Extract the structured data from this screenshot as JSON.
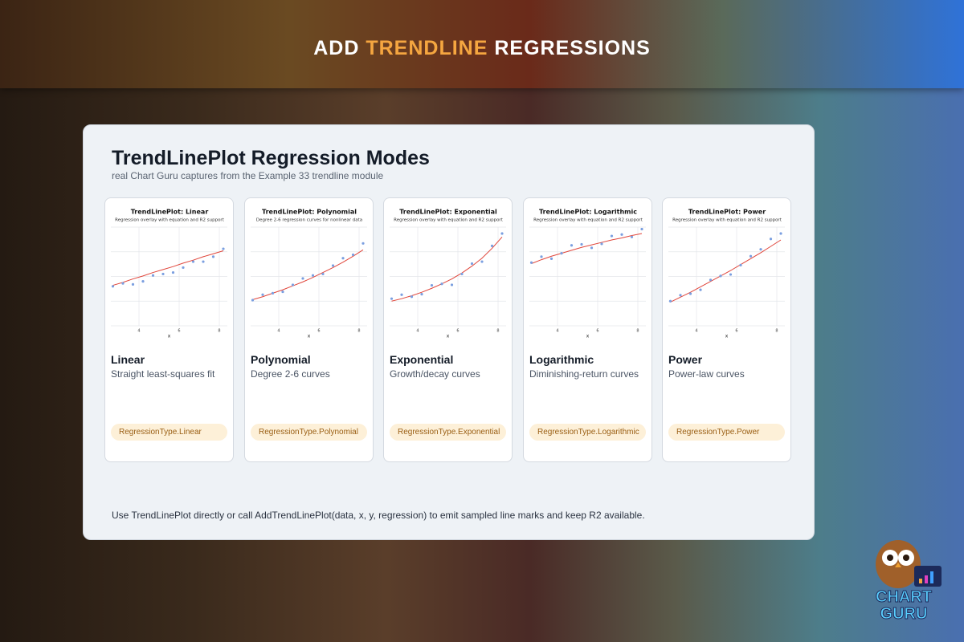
{
  "header": {
    "title": [
      "ADD",
      "TRENDLINE",
      "REGRESSIONS"
    ]
  },
  "panel": {
    "title": "TrendLinePlot Regression Modes",
    "subtitle": "real Chart Guru captures from the Example 33 trendline module",
    "footer": "Use TrendLinePlot directly or call AddTrendLinePlot(data, x, y, regression) to emit sampled line marks and keep R2 available."
  },
  "cards": [
    {
      "name": "Linear",
      "description": "Straight least-squares fit",
      "tag": "RegressionType.Linear",
      "thumbnail": {
        "type": "scatter",
        "title": "TrendLinePlot: Linear",
        "subtitle": "Regression overlay with equation and R2 support",
        "x_label": "x",
        "xlim": [
          2.6,
          8.4
        ],
        "ylim": [
          0,
          20
        ],
        "xticks": [
          4,
          6,
          8
        ],
        "point_color": "#7b9fe0",
        "fit_color": "#e0453a",
        "x": [
          2.7,
          3.2,
          3.7,
          4.2,
          4.7,
          5.2,
          5.7,
          6.2,
          6.7,
          7.2,
          7.7,
          8.2
        ],
        "points": [
          8.0,
          8.6,
          8.4,
          9.0,
          10.2,
          10.5,
          10.8,
          11.8,
          13.0,
          13.0,
          14.0,
          15.6
        ],
        "fit": [
          8.2,
          8.8,
          9.5,
          10.1,
          10.8,
          11.4,
          12.0,
          12.7,
          13.3,
          14.0,
          14.6,
          15.2
        ]
      }
    },
    {
      "name": "Polynomial",
      "description": "Degree 2-6 curves",
      "tag": "RegressionType.Polynomial",
      "thumbnail": {
        "type": "scatter",
        "title": "TrendLinePlot: Polynomial",
        "subtitle": "Degree 2-6 regression curves for nonlinear data",
        "x_label": "x",
        "xlim": [
          2.6,
          8.4
        ],
        "ylim": [
          0,
          20
        ],
        "xticks": [
          4,
          6,
          8
        ],
        "point_color": "#7b9fe0",
        "fit_color": "#e0453a",
        "x": [
          2.7,
          3.2,
          3.7,
          4.2,
          4.7,
          5.2,
          5.7,
          6.2,
          6.7,
          7.2,
          7.7,
          8.2
        ],
        "points": [
          5.2,
          6.3,
          6.6,
          6.9,
          8.3,
          9.6,
          10.2,
          10.5,
          12.2,
          13.7,
          14.4,
          16.7
        ],
        "fit": [
          5.3,
          5.9,
          6.6,
          7.3,
          8.1,
          8.9,
          9.8,
          10.8,
          11.8,
          12.9,
          14.1,
          15.4
        ]
      }
    },
    {
      "name": "Exponential",
      "description": "Growth/decay curves",
      "tag": "RegressionType.Exponential",
      "thumbnail": {
        "type": "scatter",
        "title": "TrendLinePlot: Exponential",
        "subtitle": "Regression overlay with equation and R2 support",
        "x_label": "x",
        "xlim": [
          2.6,
          8.4
        ],
        "ylim": [
          0,
          20
        ],
        "xticks": [
          4,
          6,
          8
        ],
        "point_color": "#7b9fe0",
        "fit_color": "#e0453a",
        "x": [
          2.7,
          3.2,
          3.7,
          4.2,
          4.7,
          5.2,
          5.7,
          6.2,
          6.7,
          7.2,
          7.7,
          8.2
        ],
        "points": [
          5.5,
          6.3,
          5.9,
          6.4,
          8.2,
          8.5,
          8.3,
          10.5,
          12.6,
          13.0,
          16.2,
          18.7
        ],
        "fit": [
          5.0,
          5.5,
          6.1,
          6.8,
          7.6,
          8.5,
          9.5,
          10.7,
          12.1,
          13.7,
          15.7,
          18.0
        ]
      }
    },
    {
      "name": "Logarithmic",
      "description": "Diminishing-return curves",
      "tag": "RegressionType.Logarithmic",
      "thumbnail": {
        "type": "scatter",
        "title": "TrendLinePlot: Logarithmic",
        "subtitle": "Regression overlay with equation and R2 support",
        "x_label": "x",
        "xlim": [
          2.6,
          8.4
        ],
        "ylim": [
          0,
          20
        ],
        "xticks": [
          4,
          6,
          8
        ],
        "point_color": "#7b9fe0",
        "fit_color": "#e0453a",
        "x": [
          2.7,
          3.2,
          3.7,
          4.2,
          4.7,
          5.2,
          5.7,
          6.2,
          6.7,
          7.2,
          7.7,
          8.2
        ],
        "points": [
          12.8,
          14.0,
          13.6,
          14.7,
          16.3,
          16.5,
          15.8,
          16.6,
          18.2,
          18.5,
          18.0,
          19.6
        ],
        "fit": [
          12.6,
          13.4,
          14.1,
          14.7,
          15.3,
          15.9,
          16.4,
          16.9,
          17.4,
          17.8,
          18.3,
          18.7
        ]
      }
    },
    {
      "name": "Power",
      "description": "Power-law curves",
      "tag": "RegressionType.Power",
      "thumbnail": {
        "type": "scatter",
        "title": "TrendLinePlot: Power",
        "subtitle": "Regression overlay with equation and R2 support",
        "x_label": "x",
        "xlim": [
          2.6,
          8.4
        ],
        "ylim": [
          0,
          20
        ],
        "xticks": [
          4,
          6,
          8
        ],
        "point_color": "#7b9fe0",
        "fit_color": "#e0453a",
        "x": [
          2.7,
          3.2,
          3.7,
          4.2,
          4.7,
          5.2,
          5.7,
          6.2,
          6.7,
          7.2,
          7.7,
          8.2
        ],
        "points": [
          5.0,
          6.2,
          6.5,
          7.3,
          9.3,
          10.1,
          10.4,
          12.3,
          14.1,
          15.5,
          17.6,
          18.7
        ],
        "fit": [
          4.8,
          5.8,
          6.8,
          7.9,
          9.0,
          10.1,
          11.2,
          12.4,
          13.6,
          14.8,
          16.1,
          17.4
        ]
      }
    }
  ],
  "logo": {
    "lines": [
      "CHART",
      "GURU"
    ]
  }
}
